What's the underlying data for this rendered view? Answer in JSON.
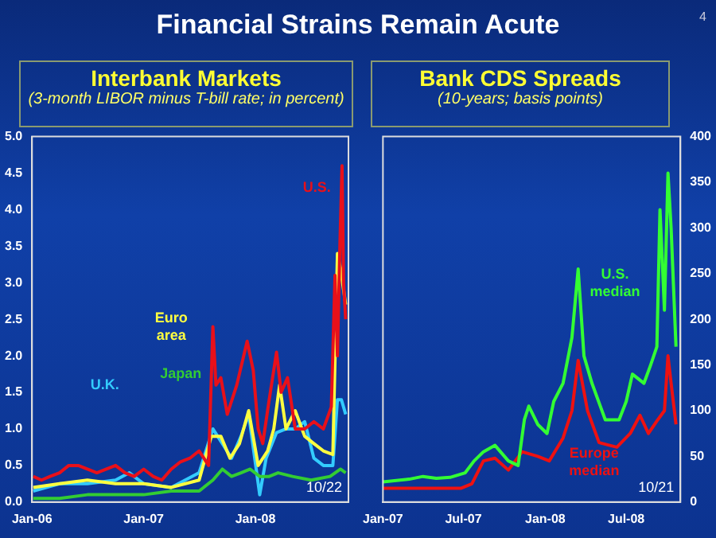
{
  "chart_data": [
    {
      "type": "line",
      "title": "Interbank Markets",
      "subtitle": "(3-month LIBOR minus T-bill rate; in percent)",
      "annotations": [
        "Financial Strains Remain Acute",
        "4",
        "10/22"
      ],
      "grid": false,
      "legend": false,
      "xlim": [
        "2006-01-01",
        "2008-10-31"
      ],
      "xticks": [
        {
          "value": "2006-01-01",
          "label": "Jan-06"
        },
        {
          "value": "2007-01-01",
          "label": "Jan-07"
        },
        {
          "value": "2008-01-01",
          "label": "Jan-08"
        }
      ],
      "ylim": [
        0,
        5
      ],
      "yticks": [
        {
          "value": 0,
          "label": "0.0"
        },
        0.5,
        {
          "value": 1,
          "label": "1.0"
        },
        1.5,
        {
          "value": 2,
          "label": "2.0"
        },
        2.5,
        {
          "value": 3,
          "label": "3.0"
        },
        3.5,
        {
          "value": 4,
          "label": "4.0"
        },
        4.5,
        {
          "value": 5,
          "label": "5.0"
        }
      ],
      "series": [
        {
          "name": "U.S.",
          "color": "#e8101a",
          "x": [
            "2006-01-05",
            "2006-02-01",
            "2006-03-01",
            "2006-04-01",
            "2006-05-01",
            "2006-06-01",
            "2006-07-01",
            "2006-08-01",
            "2006-09-01",
            "2006-10-01",
            "2006-11-01",
            "2006-12-01",
            "2007-01-01",
            "2007-02-01",
            "2007-03-01",
            "2007-04-01",
            "2007-05-01",
            "2007-06-01",
            "2007-07-01",
            "2007-08-01",
            "2007-08-15",
            "2007-08-25",
            "2007-09-10",
            "2007-10-01",
            "2007-11-01",
            "2007-12-05",
            "2007-12-25",
            "2008-01-10",
            "2008-01-25",
            "2008-02-15",
            "2008-03-10",
            "2008-03-25",
            "2008-04-15",
            "2008-05-10",
            "2008-06-10",
            "2008-07-10",
            "2008-08-10",
            "2008-09-05",
            "2008-09-17",
            "2008-09-25",
            "2008-10-03",
            "2008-10-10",
            "2008-10-15",
            "2008-10-22"
          ],
          "values": [
            0.35,
            0.3,
            0.35,
            0.4,
            0.5,
            0.5,
            0.45,
            0.4,
            0.45,
            0.5,
            0.4,
            0.35,
            0.45,
            0.35,
            0.3,
            0.45,
            0.55,
            0.6,
            0.7,
            0.5,
            2.4,
            1.6,
            1.7,
            1.2,
            1.6,
            2.2,
            1.8,
            1.0,
            0.8,
            1.4,
            2.05,
            1.5,
            1.7,
            1.0,
            1.0,
            1.1,
            1.0,
            1.3,
            3.1,
            2.0,
            3.5,
            4.6,
            3.0,
            2.5
          ]
        },
        {
          "name": "Euro area",
          "color": "#ffff40",
          "x": [
            "2006-01-05",
            "2006-04-01",
            "2006-07-01",
            "2006-10-01",
            "2007-01-01",
            "2007-04-01",
            "2007-07-01",
            "2007-08-10",
            "2007-09-10",
            "2007-10-10",
            "2007-11-10",
            "2007-12-10",
            "2008-01-10",
            "2008-02-10",
            "2008-03-01",
            "2008-03-20",
            "2008-04-10",
            "2008-05-10",
            "2008-06-10",
            "2008-07-10",
            "2008-08-10",
            "2008-09-10",
            "2008-09-25",
            "2008-10-05",
            "2008-10-22"
          ],
          "values": [
            0.2,
            0.25,
            0.3,
            0.25,
            0.25,
            0.2,
            0.3,
            0.9,
            0.9,
            0.6,
            0.8,
            1.25,
            0.5,
            0.7,
            1.0,
            1.6,
            1.0,
            1.25,
            0.9,
            0.8,
            0.7,
            0.65,
            3.4,
            3.2,
            2.7
          ]
        },
        {
          "name": "Japan",
          "color": "#33cc33",
          "x": [
            "2006-01-05",
            "2006-04-01",
            "2006-07-01",
            "2006-10-01",
            "2007-01-01",
            "2007-04-01",
            "2007-07-01",
            "2007-08-15",
            "2007-09-15",
            "2007-10-15",
            "2007-11-15",
            "2007-12-15",
            "2008-01-15",
            "2008-02-15",
            "2008-03-15",
            "2008-05-01",
            "2008-07-01",
            "2008-09-01",
            "2008-10-05",
            "2008-10-22"
          ],
          "values": [
            0.05,
            0.05,
            0.1,
            0.1,
            0.1,
            0.15,
            0.15,
            0.3,
            0.45,
            0.35,
            0.4,
            0.45,
            0.35,
            0.35,
            0.4,
            0.35,
            0.3,
            0.35,
            0.45,
            0.4
          ]
        },
        {
          "name": "U.K.",
          "color": "#33ccff",
          "x": [
            "2006-01-05",
            "2006-04-01",
            "2006-07-01",
            "2006-10-01",
            "2006-11-15",
            "2007-01-01",
            "2007-04-01",
            "2007-07-01",
            "2007-08-15",
            "2007-09-15",
            "2007-10-15",
            "2007-11-15",
            "2007-12-10",
            "2008-01-15",
            "2008-02-05",
            "2008-03-10",
            "2008-04-10",
            "2008-05-10",
            "2008-06-10",
            "2008-07-10",
            "2008-08-10",
            "2008-09-10",
            "2008-09-25",
            "2008-10-08",
            "2008-10-22"
          ],
          "values": [
            0.15,
            0.25,
            0.25,
            0.3,
            0.4,
            0.25,
            0.2,
            0.4,
            1.0,
            0.8,
            0.6,
            0.9,
            1.2,
            0.1,
            0.6,
            0.95,
            1.0,
            1.0,
            1.1,
            0.6,
            0.5,
            0.5,
            1.4,
            1.4,
            1.2
          ]
        }
      ]
    },
    {
      "type": "line",
      "title": "Bank CDS Spreads",
      "subtitle": "(10-years; basis points)",
      "annotations": [
        "10/21"
      ],
      "grid": false,
      "legend": false,
      "xlim": [
        "2007-01-01",
        "2008-10-31"
      ],
      "xticks": [
        {
          "value": "2007-01-01",
          "label": "Jan-07"
        },
        {
          "value": "2007-07-01",
          "label": "Jul-07"
        },
        {
          "value": "2008-01-01",
          "label": "Jan-08"
        },
        {
          "value": "2008-07-01",
          "label": "Jul-08"
        }
      ],
      "y2lim": [
        0,
        400
      ],
      "y2ticks": [
        0,
        50,
        100,
        150,
        200,
        250,
        300,
        350,
        400
      ],
      "series": [
        {
          "name": "U.S. median",
          "color": "#33ff33",
          "axis": "y2",
          "x": [
            "2007-01-01",
            "2007-03-01",
            "2007-04-01",
            "2007-05-01",
            "2007-06-01",
            "2007-07-05",
            "2007-07-25",
            "2007-08-15",
            "2007-09-10",
            "2007-10-10",
            "2007-11-01",
            "2007-11-15",
            "2007-11-25",
            "2007-12-15",
            "2008-01-05",
            "2008-01-20",
            "2008-02-10",
            "2008-03-01",
            "2008-03-15",
            "2008-03-28",
            "2008-04-15",
            "2008-05-15",
            "2008-06-15",
            "2008-07-01",
            "2008-07-15",
            "2008-08-10",
            "2008-08-25",
            "2008-09-08",
            "2008-09-15",
            "2008-09-25",
            "2008-10-03",
            "2008-10-10",
            "2008-10-21"
          ],
          "values": [
            22,
            25,
            28,
            26,
            27,
            32,
            45,
            55,
            62,
            45,
            40,
            90,
            105,
            85,
            75,
            110,
            130,
            180,
            255,
            160,
            130,
            90,
            90,
            110,
            140,
            130,
            150,
            170,
            320,
            210,
            360,
            300,
            170
          ]
        },
        {
          "name": "Europe median",
          "color": "#ee1111",
          "axis": "y2",
          "x": [
            "2007-01-01",
            "2007-06-25",
            "2007-07-20",
            "2007-08-15",
            "2007-09-10",
            "2007-10-10",
            "2007-11-10",
            "2007-12-15",
            "2008-01-10",
            "2008-02-10",
            "2008-03-01",
            "2008-03-15",
            "2008-04-05",
            "2008-05-01",
            "2008-06-10",
            "2008-07-10",
            "2008-08-01",
            "2008-08-20",
            "2008-09-10",
            "2008-09-25",
            "2008-10-03",
            "2008-10-10",
            "2008-10-21"
          ],
          "values": [
            15,
            15,
            20,
            45,
            48,
            35,
            55,
            50,
            45,
            70,
            100,
            155,
            100,
            65,
            60,
            75,
            95,
            75,
            90,
            100,
            160,
            130,
            85
          ]
        }
      ]
    }
  ]
}
